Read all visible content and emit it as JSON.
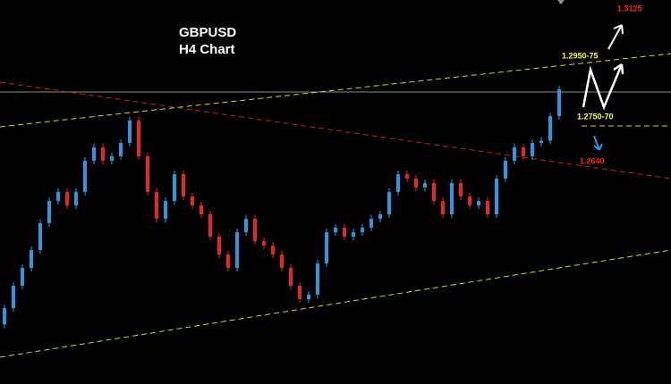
{
  "chart_data": {
    "type": "candlestick",
    "title": "GBPUSD",
    "subtitle": "H4 Chart",
    "ylim": [
      1.204,
      1.3072
    ],
    "up_color": "#2f97e0",
    "down_color": "#e3262c",
    "open": [
      1.22,
      1.2244,
      1.2304,
      1.2352,
      1.24,
      1.2472,
      1.2532,
      1.2556,
      1.252,
      1.2556,
      1.264,
      1.2676,
      1.264,
      1.2652,
      1.2688,
      1.2748,
      1.2652,
      1.2556,
      1.2484,
      1.2532,
      1.2604,
      1.2544,
      1.252,
      1.2496,
      1.2436,
      1.2388,
      1.2352,
      1.2448,
      1.2484,
      1.2424,
      1.2412,
      1.2388,
      1.2352,
      1.2304,
      1.2268,
      1.228,
      1.2364,
      1.2448,
      1.246,
      1.2436,
      1.2448,
      1.246,
      1.2484,
      1.2496,
      1.2556,
      1.2604,
      1.2592,
      1.2568,
      1.258,
      1.2532,
      1.2496,
      1.258,
      1.2544,
      1.252,
      1.2532,
      1.2496,
      1.2592,
      1.264,
      1.2676,
      1.2652,
      1.2688,
      1.2694,
      1.276
    ],
    "high": [
      1.2254,
      1.2314,
      1.2362,
      1.241,
      1.2482,
      1.2542,
      1.2566,
      1.2566,
      1.2566,
      1.265,
      1.2686,
      1.2686,
      1.2662,
      1.2698,
      1.2758,
      1.2758,
      1.2662,
      1.2566,
      1.2542,
      1.2614,
      1.2614,
      1.2554,
      1.253,
      1.2506,
      1.2446,
      1.2398,
      1.2458,
      1.2494,
      1.2494,
      1.2434,
      1.2422,
      1.2398,
      1.2362,
      1.2314,
      1.229,
      1.2374,
      1.2458,
      1.247,
      1.247,
      1.2458,
      1.247,
      1.2494,
      1.2506,
      1.2566,
      1.2614,
      1.2614,
      1.2602,
      1.259,
      1.259,
      1.2542,
      1.259,
      1.259,
      1.2554,
      1.2542,
      1.2542,
      1.2602,
      1.265,
      1.2686,
      1.2686,
      1.2698,
      1.2704,
      1.277,
      1.2842
    ],
    "low": [
      1.219,
      1.2234,
      1.2294,
      1.2342,
      1.239,
      1.2462,
      1.2522,
      1.251,
      1.251,
      1.2546,
      1.263,
      1.263,
      1.263,
      1.2642,
      1.2678,
      1.2642,
      1.2546,
      1.2474,
      1.2474,
      1.2522,
      1.2534,
      1.251,
      1.2486,
      1.2426,
      1.2378,
      1.2342,
      1.2342,
      1.2438,
      1.2414,
      1.2402,
      1.2378,
      1.2342,
      1.2294,
      1.2258,
      1.2258,
      1.227,
      1.2354,
      1.2438,
      1.2426,
      1.2426,
      1.2438,
      1.245,
      1.2474,
      1.2486,
      1.2546,
      1.2582,
      1.2558,
      1.2558,
      1.2522,
      1.2486,
      1.2486,
      1.2534,
      1.251,
      1.251,
      1.2486,
      1.2486,
      1.2582,
      1.263,
      1.2642,
      1.2642,
      1.2678,
      1.2684,
      1.275
    ],
    "close": [
      1.2244,
      1.2304,
      1.2352,
      1.24,
      1.2472,
      1.2532,
      1.2556,
      1.252,
      1.2556,
      1.264,
      1.2676,
      1.264,
      1.2652,
      1.2688,
      1.2748,
      1.2652,
      1.2556,
      1.2484,
      1.2532,
      1.2604,
      1.2544,
      1.252,
      1.2496,
      1.2436,
      1.2388,
      1.2352,
      1.2448,
      1.2484,
      1.2424,
      1.2412,
      1.2388,
      1.2352,
      1.2304,
      1.2268,
      1.228,
      1.2364,
      1.2448,
      1.246,
      1.2436,
      1.2448,
      1.246,
      1.2484,
      1.2496,
      1.2556,
      1.2604,
      1.2592,
      1.2568,
      1.258,
      1.2532,
      1.2496,
      1.258,
      1.2544,
      1.252,
      1.2532,
      1.2496,
      1.2592,
      1.264,
      1.2676,
      1.2652,
      1.2688,
      1.2694,
      1.276,
      1.2832
    ],
    "annotations": [
      {
        "text": "1.3125",
        "color": "#ff2020"
      },
      {
        "text": "1.2950-75",
        "color": "#ffff30"
      },
      {
        "text": "1.2750-70",
        "color": "#ffff30"
      },
      {
        "text": "1.2640",
        "color": "#ff2020"
      }
    ]
  }
}
